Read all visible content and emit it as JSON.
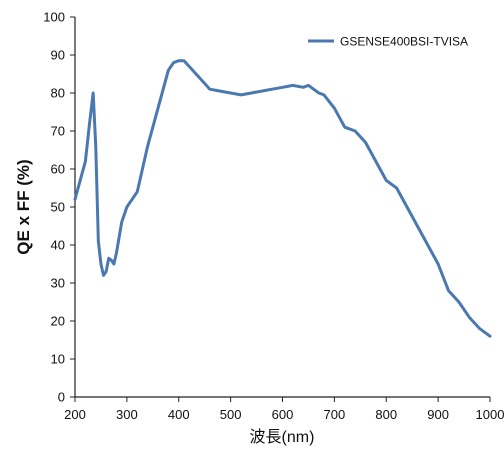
{
  "chart_data": {
    "type": "line",
    "title": "",
    "xlabel": "波長(nm)",
    "ylabel": "QE x FF (%)",
    "xlim": [
      200,
      1000
    ],
    "ylim": [
      0,
      100
    ],
    "xticks": [
      200,
      300,
      400,
      500,
      600,
      700,
      800,
      900,
      1000
    ],
    "yticks": [
      0,
      10,
      20,
      30,
      40,
      50,
      60,
      70,
      80,
      90,
      100
    ],
    "grid": false,
    "legend_position": "top-right",
    "series": [
      {
        "name": "GSENSE400BSI-TVISA",
        "color": "#4a78b0",
        "x": [
          200,
          210,
          220,
          228,
          235,
          240,
          245,
          250,
          255,
          260,
          265,
          270,
          275,
          280,
          290,
          300,
          320,
          340,
          360,
          380,
          390,
          400,
          410,
          420,
          440,
          460,
          480,
          500,
          520,
          540,
          560,
          580,
          600,
          620,
          640,
          650,
          660,
          670,
          680,
          700,
          720,
          740,
          760,
          780,
          800,
          820,
          840,
          860,
          880,
          900,
          920,
          940,
          960,
          980,
          1000
        ],
        "y": [
          52,
          57,
          62,
          72,
          80,
          66,
          41,
          35,
          32,
          33,
          36.5,
          36,
          35,
          38,
          46,
          50,
          54,
          66,
          76,
          86,
          88,
          88.5,
          88.5,
          87,
          84,
          81,
          80.5,
          80,
          79.5,
          80,
          80.5,
          81,
          81.5,
          82,
          81.5,
          82,
          81,
          80,
          79.5,
          76,
          71,
          70,
          67,
          62,
          57,
          55,
          50,
          45,
          40,
          35,
          28,
          25,
          21,
          18,
          16
        ]
      }
    ]
  }
}
